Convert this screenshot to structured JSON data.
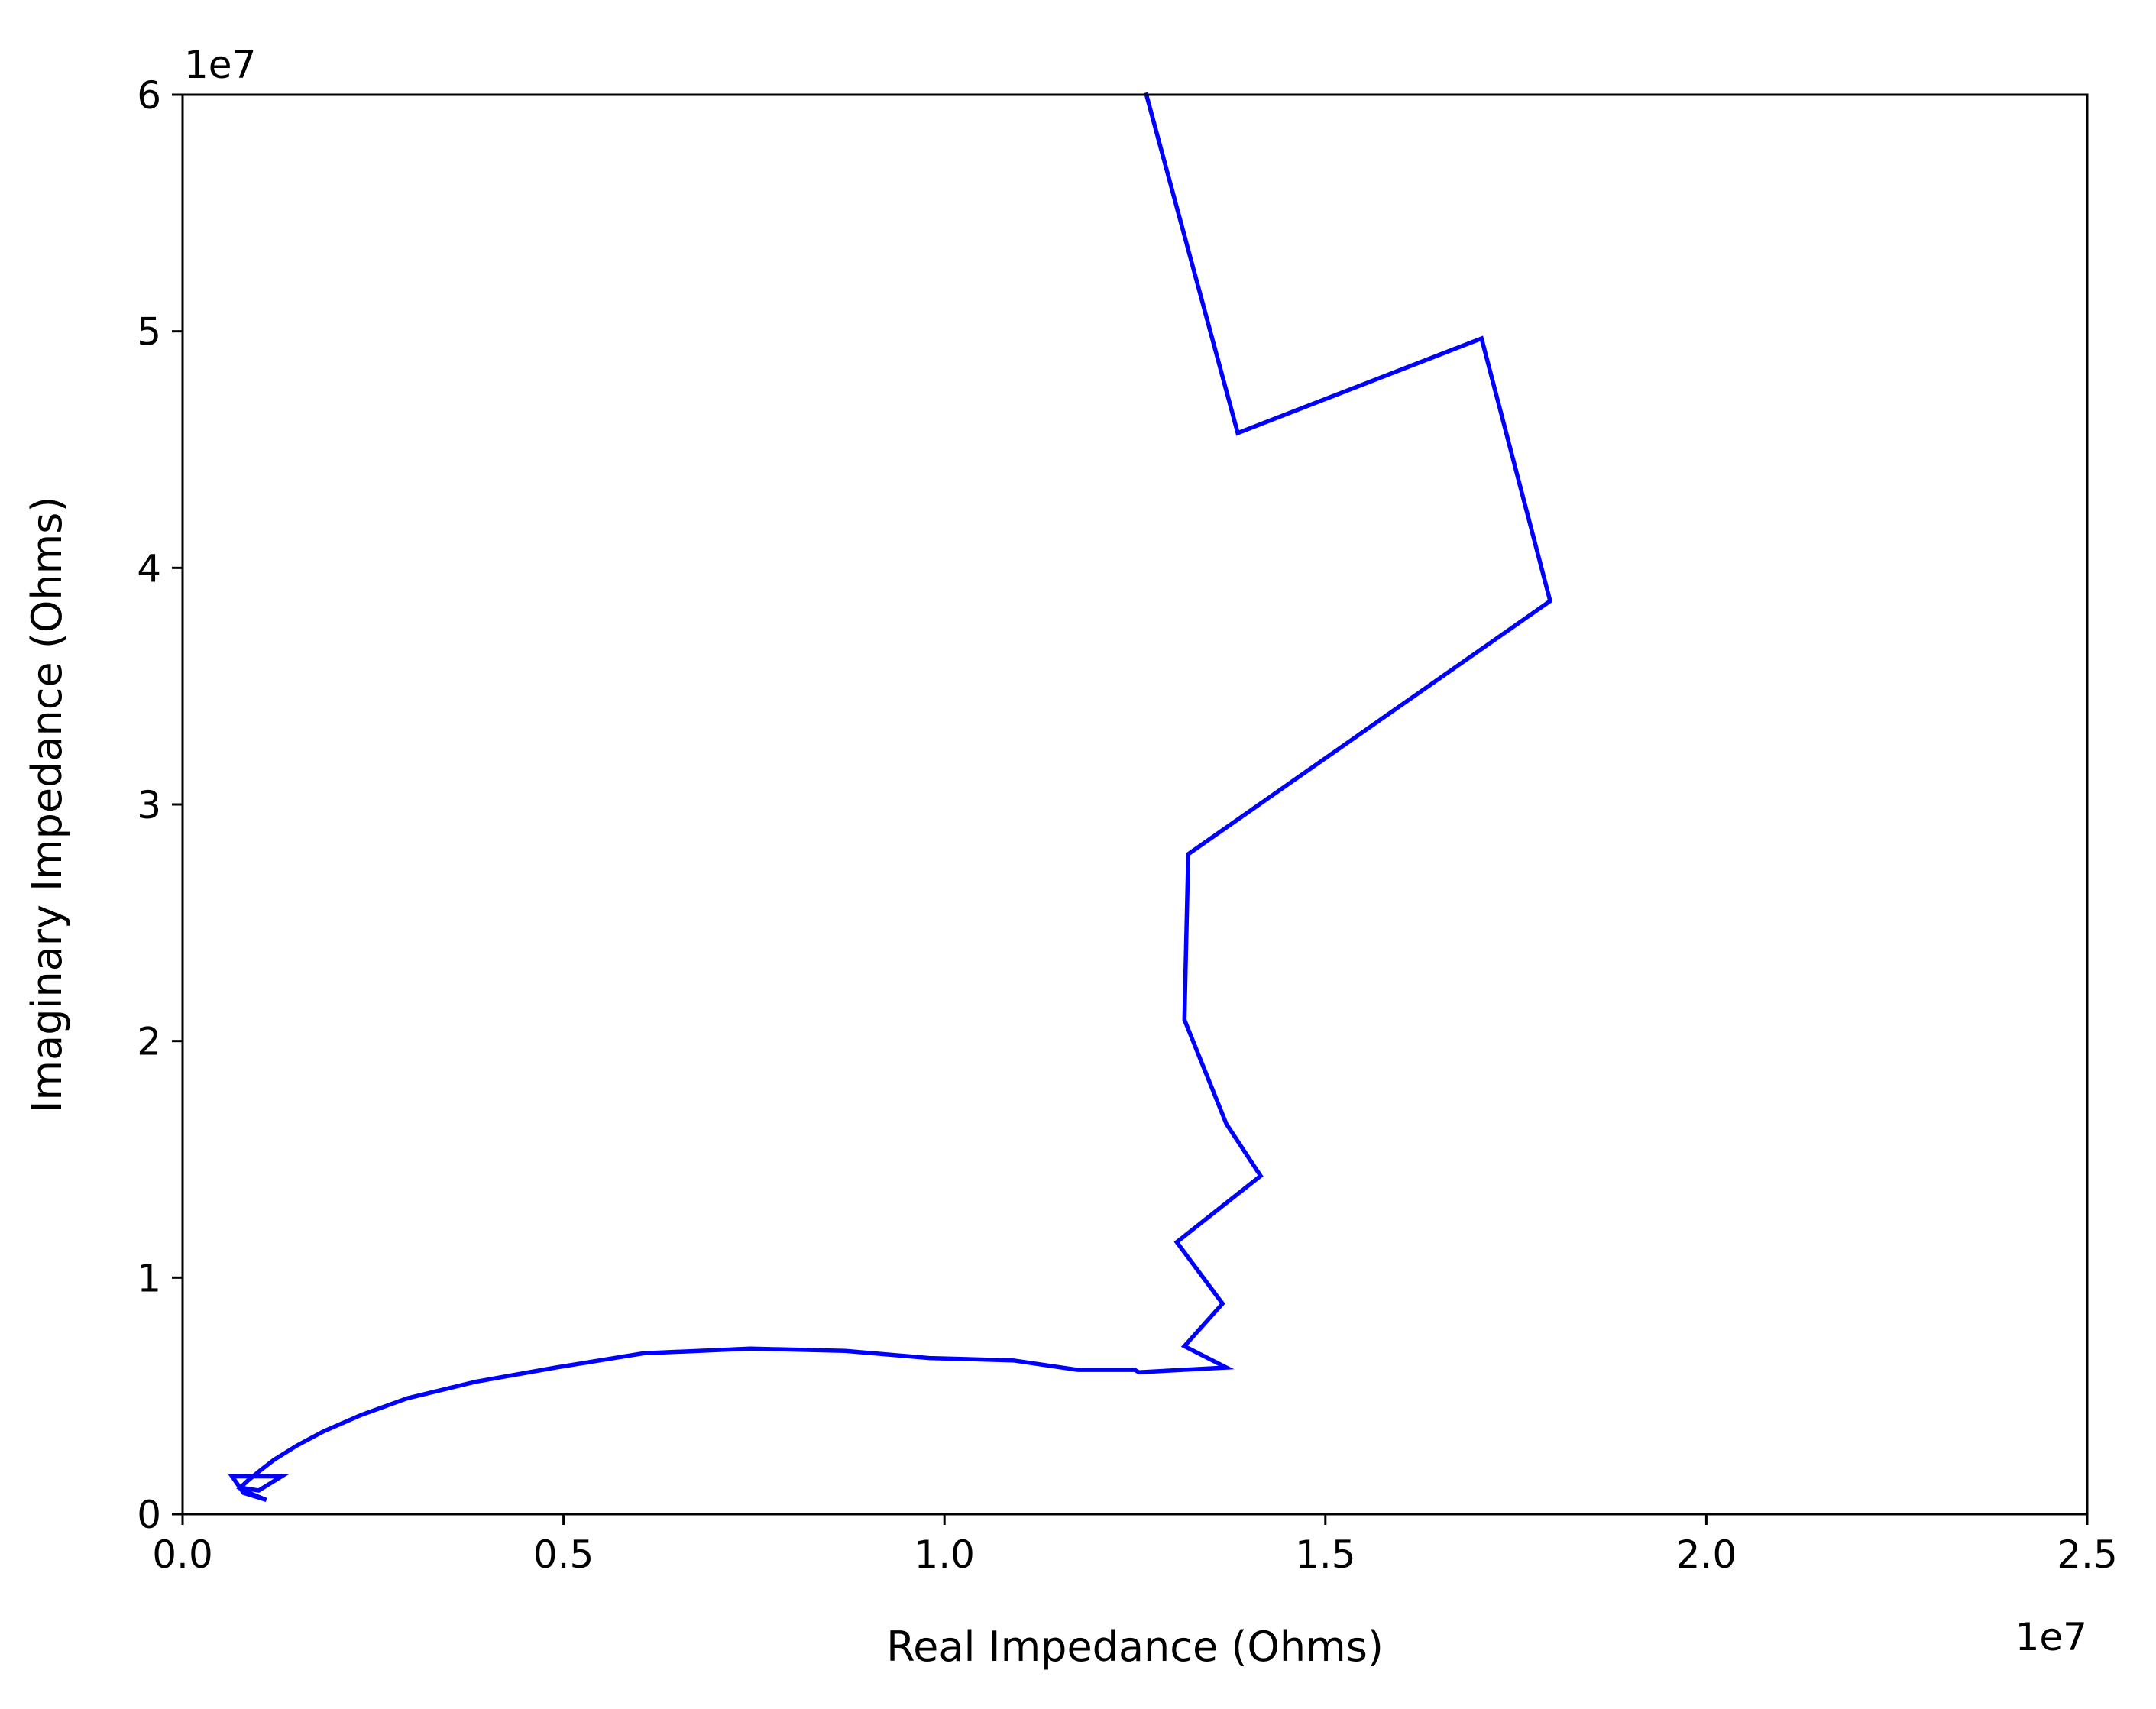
{
  "chart_data": {
    "type": "line",
    "title": "",
    "xlabel": "Real Impedance (Ohms)",
    "ylabel": "Imaginary Impedance (Ohms)",
    "x_offset_label": "1e7",
    "y_offset_label": "1e7",
    "xlim": [
      0,
      2.5
    ],
    "ylim": [
      0,
      6
    ],
    "x_ticks": [
      "0.0",
      "0.5",
      "1.0",
      "1.5",
      "2.0",
      "2.5"
    ],
    "y_ticks": [
      "0",
      "1",
      "2",
      "3",
      "4",
      "5",
      "6"
    ],
    "grid": false,
    "legend": "none",
    "series": [
      {
        "color": "#0000ff",
        "x": [
          1.265,
          1.385,
          1.705,
          1.795,
          1.32,
          1.315,
          1.37,
          1.415,
          1.305,
          1.365,
          1.315,
          1.37,
          1.255,
          1.25,
          1.175,
          1.09,
          0.98,
          0.87,
          0.745,
          0.605,
          0.49,
          0.385,
          0.295,
          0.235,
          0.185,
          0.15,
          0.12,
          0.1,
          0.085,
          0.075,
          0.08,
          0.11,
          0.08,
          0.065,
          0.13,
          0.1,
          0.08
        ],
        "y": [
          6.0,
          4.57,
          4.97,
          3.86,
          2.79,
          2.09,
          1.65,
          1.43,
          1.15,
          0.89,
          0.71,
          0.62,
          0.6,
          0.61,
          0.61,
          0.65,
          0.66,
          0.69,
          0.7,
          0.68,
          0.62,
          0.56,
          0.49,
          0.42,
          0.35,
          0.29,
          0.23,
          0.18,
          0.14,
          0.11,
          0.1,
          0.06,
          0.09,
          0.16,
          0.16,
          0.1,
          0.11
        ]
      }
    ]
  }
}
